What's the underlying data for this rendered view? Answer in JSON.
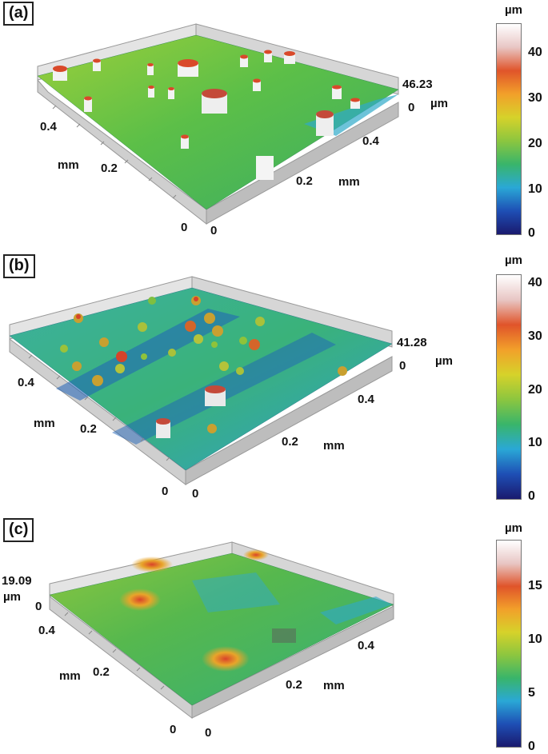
{
  "colormap": [
    "#1a1a6e",
    "#1e4fb5",
    "#2aa8d6",
    "#39b56a",
    "#8cc63f",
    "#d6d22a",
    "#f2a02a",
    "#e0542a",
    "#e8c6c4",
    "#ffffff"
  ],
  "axis_unit": "mm",
  "height_unit": "µm",
  "panels": [
    {
      "id": "a",
      "label": "(a)",
      "max_height_label": "46.23",
      "zero_label": "0",
      "left_axis": {
        "ticks": [
          "0.4",
          "0.2",
          "0"
        ],
        "unit": "mm"
      },
      "right_axis": {
        "ticks": [
          "0",
          "0.2",
          "0.4"
        ],
        "unit": "mm"
      },
      "colorbar": {
        "unit": "µm",
        "ticks": [
          "40",
          "30",
          "20",
          "10",
          "0"
        ],
        "min": 0,
        "max": 46.23
      }
    },
    {
      "id": "b",
      "label": "(b)",
      "max_height_label": "41.28",
      "zero_label": "0",
      "left_axis": {
        "ticks": [
          "0.4",
          "0.2",
          "0"
        ],
        "unit": "mm"
      },
      "right_axis": {
        "ticks": [
          "0",
          "0.2",
          "0.4"
        ],
        "unit": "mm"
      },
      "colorbar": {
        "unit": "µm",
        "ticks": [
          "40",
          "30",
          "20",
          "10",
          "0"
        ],
        "min": 0,
        "max": 41.28
      }
    },
    {
      "id": "c",
      "label": "(c)",
      "max_height_label": "19.09",
      "zero_label": "0",
      "left_axis": {
        "ticks": [
          "0.4",
          "0.2",
          "0"
        ],
        "unit": "mm"
      },
      "right_axis": {
        "ticks": [
          "0",
          "0.2",
          "0.4"
        ],
        "unit": "mm"
      },
      "colorbar": {
        "unit": "µm",
        "ticks": [
          "15",
          "10",
          "5",
          "0"
        ],
        "min": 0,
        "max": 19.09
      }
    }
  ]
}
